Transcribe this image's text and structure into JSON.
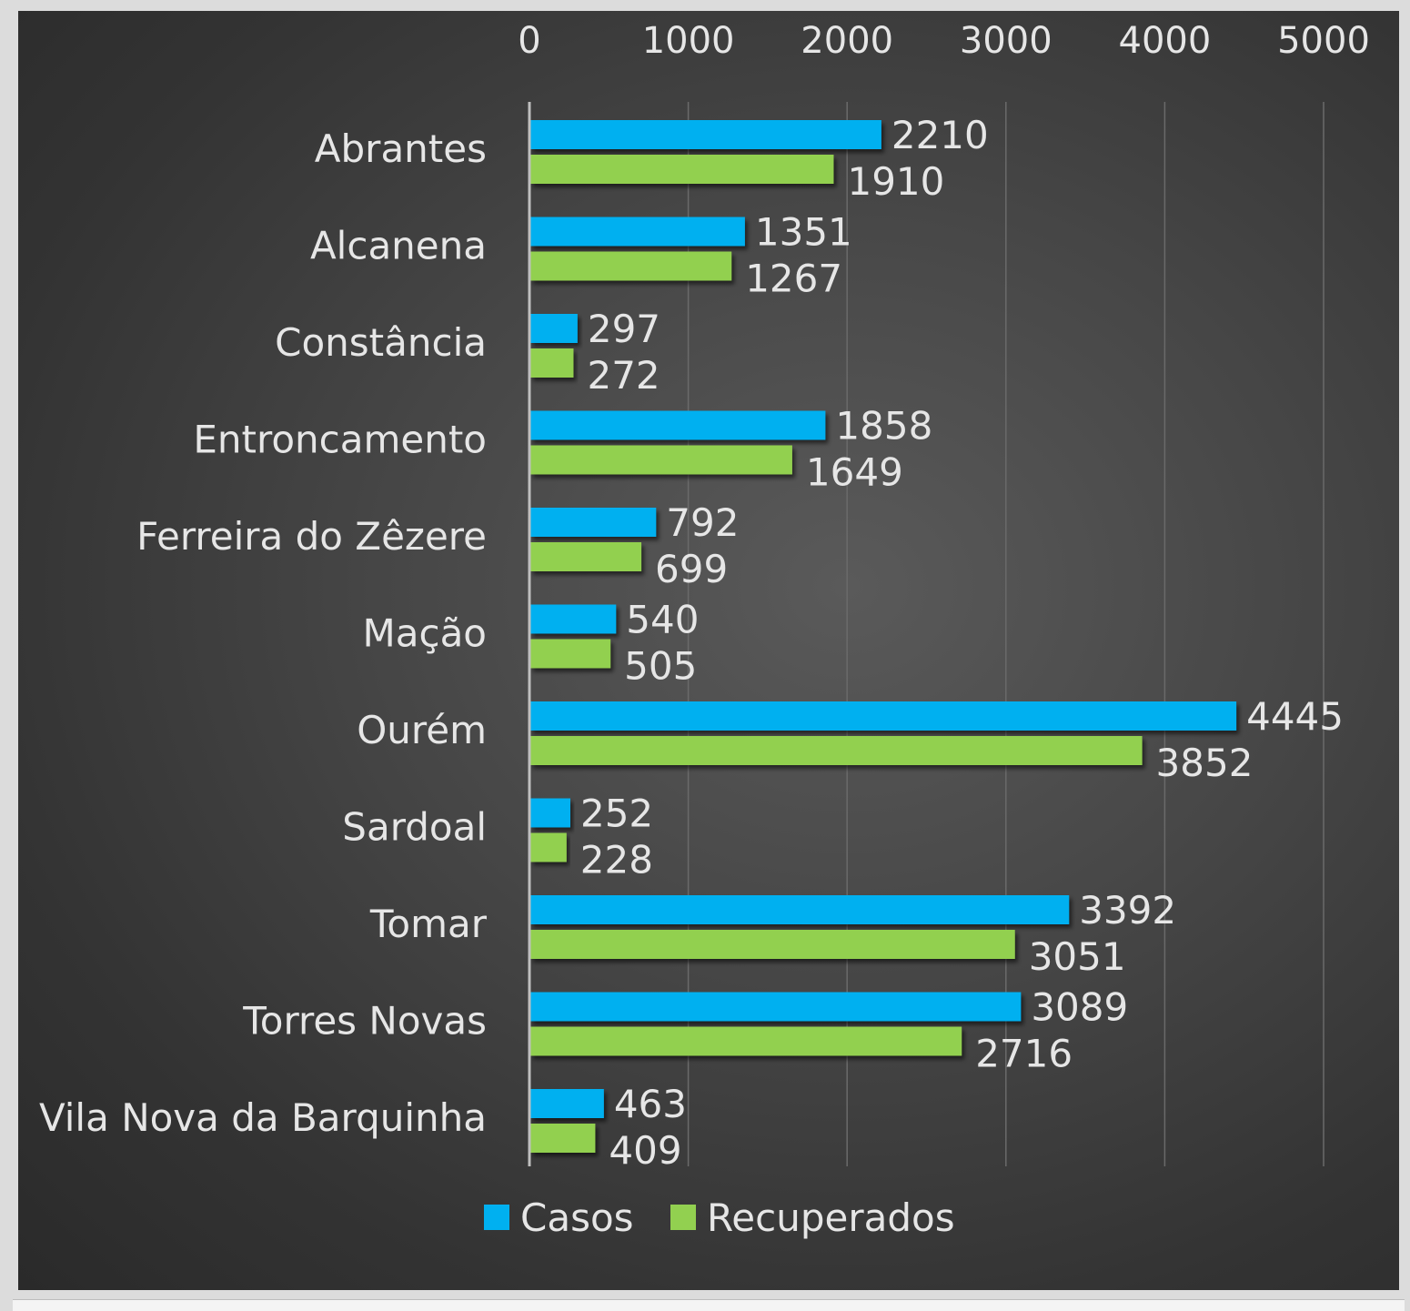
{
  "chart_data": {
    "type": "bar",
    "orientation": "horizontal",
    "title": "",
    "xlabel": "",
    "ylabel": "",
    "xlim": [
      0,
      5000
    ],
    "x_ticks": [
      0,
      1000,
      2000,
      3000,
      4000,
      5000
    ],
    "x_axis_position": "top",
    "grid": true,
    "legend_position": "bottom",
    "categories": [
      "Abrantes",
      "Alcanena",
      "Constância",
      "Entroncamento",
      "Ferreira do Zêzere",
      "Mação",
      "Ourém",
      "Sardoal",
      "Tomar",
      "Torres Novas",
      "Vila Nova da Barquinha"
    ],
    "series": [
      {
        "name": "Casos",
        "color": "#00b0f0",
        "values": [
          2210,
          1351,
          297,
          1858,
          792,
          540,
          4445,
          252,
          3392,
          3089,
          463
        ]
      },
      {
        "name": "Recuperados",
        "color": "#92d050",
        "values": [
          1910,
          1267,
          272,
          1649,
          699,
          505,
          3852,
          228,
          3051,
          2716,
          409
        ]
      }
    ]
  }
}
